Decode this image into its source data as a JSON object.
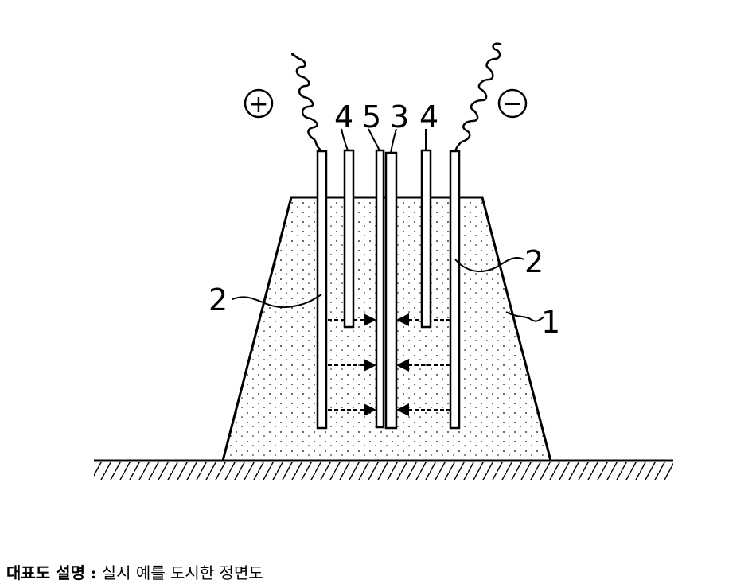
{
  "diagram": {
    "labels": {
      "plus_symbol": "+",
      "minus_symbol": "−",
      "electrode_left": "2",
      "electrode_right": "2",
      "rod_4_left": "4",
      "rod_5": "5",
      "rod_3": "3",
      "rod_4_right": "4",
      "soil_body": "1"
    }
  },
  "caption": {
    "title": "대표도 설명 :",
    "text": "실시 예를 도시한 정면도"
  }
}
